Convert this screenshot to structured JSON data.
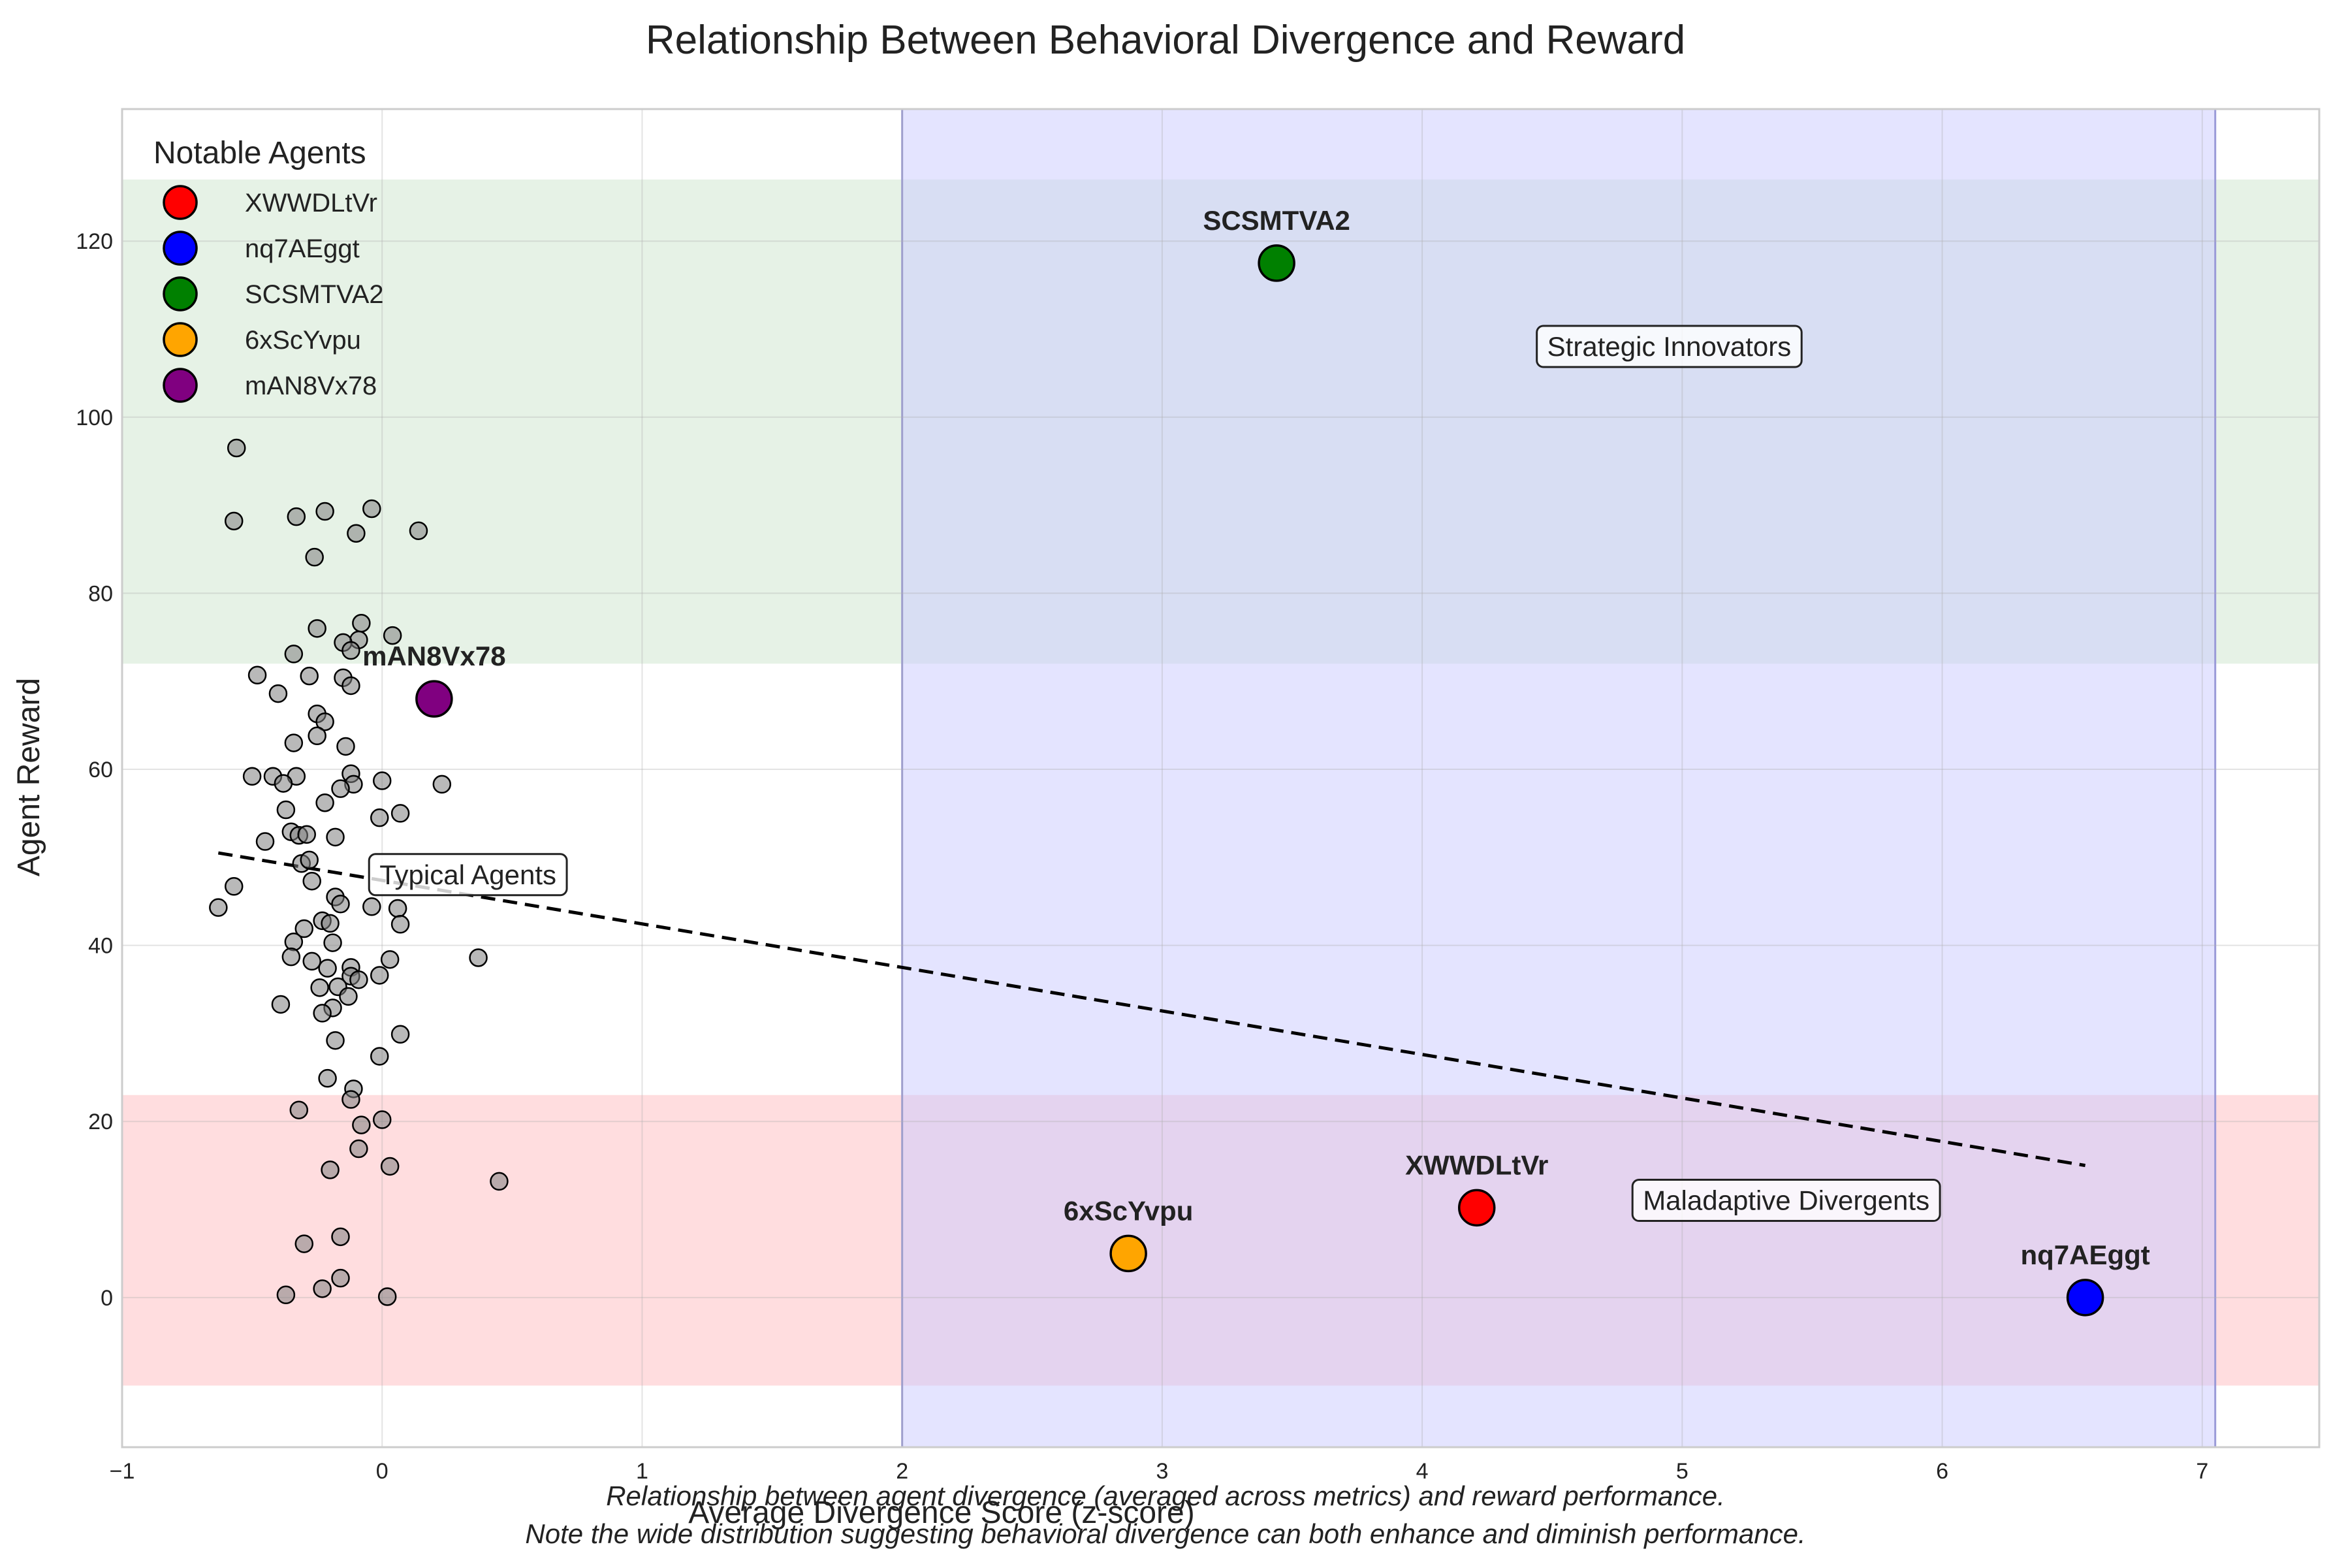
{
  "chart_data": {
    "type": "scatter",
    "title": "Relationship Between Behavioral Divergence and Reward",
    "xlabel": "Average Divergence Score (z-score)",
    "ylabel": "Agent Reward",
    "xlim": [
      -1,
      7.45
    ],
    "ylim": [
      -17,
      135
    ],
    "xticks": [
      -1,
      0,
      1,
      2,
      3,
      4,
      5,
      6,
      7
    ],
    "xtick_labels": [
      "−1",
      "0",
      "1",
      "2",
      "3",
      "4",
      "5",
      "6",
      "7"
    ],
    "yticks": [
      0,
      20,
      40,
      60,
      80,
      100,
      120
    ],
    "ytick_labels": [
      "0",
      "20",
      "40",
      "60",
      "80",
      "100",
      "120"
    ],
    "grid": true,
    "legend": {
      "title": "Notable Agents",
      "placement": "top-left"
    },
    "regions": [
      {
        "kind": "horizontal",
        "y": [
          72,
          127
        ],
        "color": "#c8e3c8"
      },
      {
        "kind": "horizontal",
        "y": [
          -10,
          23
        ],
        "color": "#ffb3b8"
      },
      {
        "kind": "vertical",
        "x": [
          2,
          7.05
        ],
        "color": "#c9c9ff"
      }
    ],
    "region_labels": [
      {
        "text": "Strategic Innovators",
        "x": 4.95,
        "y": 108
      },
      {
        "text": "Typical Agents",
        "x": 0.33,
        "y": 48
      },
      {
        "text": "Maladaptive Divergents",
        "x": 5.4,
        "y": 11
      }
    ],
    "trend_line": {
      "x": [
        -0.63,
        6.55
      ],
      "y": [
        50.5,
        15.0
      ],
      "style": "dashed",
      "color": "#000000"
    },
    "background_points": [
      [
        -0.56,
        96.5
      ],
      [
        -0.57,
        88.2
      ],
      [
        -0.33,
        88.7
      ],
      [
        -0.22,
        89.3
      ],
      [
        -0.04,
        89.6
      ],
      [
        -0.1,
        86.8
      ],
      [
        0.14,
        87.1
      ],
      [
        -0.26,
        84.1
      ],
      [
        -0.25,
        76.0
      ],
      [
        -0.08,
        76.6
      ],
      [
        0.04,
        75.2
      ],
      [
        -0.09,
        74.7
      ],
      [
        -0.15,
        74.4
      ],
      [
        -0.34,
        73.1
      ],
      [
        -0.12,
        73.5
      ],
      [
        -0.48,
        70.7
      ],
      [
        -0.28,
        70.6
      ],
      [
        -0.15,
        70.4
      ],
      [
        -0.4,
        68.6
      ],
      [
        -0.12,
        69.5
      ],
      [
        -0.25,
        66.3
      ],
      [
        -0.22,
        65.4
      ],
      [
        -0.25,
        63.8
      ],
      [
        -0.34,
        63.0
      ],
      [
        -0.14,
        62.6
      ],
      [
        -0.5,
        59.2
      ],
      [
        -0.42,
        59.2
      ],
      [
        -0.33,
        59.2
      ],
      [
        -0.12,
        59.5
      ],
      [
        -0.38,
        58.4
      ],
      [
        -0.11,
        58.3
      ],
      [
        -0.16,
        57.8
      ],
      [
        0.0,
        58.7
      ],
      [
        0.23,
        58.3
      ],
      [
        -0.22,
        56.2
      ],
      [
        -0.37,
        55.4
      ],
      [
        0.07,
        55.0
      ],
      [
        -0.01,
        54.5
      ],
      [
        -0.35,
        52.9
      ],
      [
        -0.32,
        52.5
      ],
      [
        -0.29,
        52.6
      ],
      [
        -0.18,
        52.3
      ],
      [
        -0.45,
        51.8
      ],
      [
        -0.31,
        49.3
      ],
      [
        -0.28,
        49.7
      ],
      [
        -0.27,
        47.3
      ],
      [
        -0.57,
        46.7
      ],
      [
        -0.18,
        45.5
      ],
      [
        -0.16,
        44.7
      ],
      [
        -0.63,
        44.3
      ],
      [
        -0.04,
        44.4
      ],
      [
        0.06,
        44.2
      ],
      [
        0.07,
        42.4
      ],
      [
        -0.23,
        42.8
      ],
      [
        -0.2,
        42.5
      ],
      [
        -0.3,
        41.9
      ],
      [
        -0.34,
        40.4
      ],
      [
        -0.19,
        40.3
      ],
      [
        0.37,
        38.6
      ],
      [
        -0.35,
        38.7
      ],
      [
        0.03,
        38.4
      ],
      [
        -0.27,
        38.2
      ],
      [
        -0.21,
        37.4
      ],
      [
        -0.12,
        37.5
      ],
      [
        -0.12,
        36.5
      ],
      [
        -0.09,
        36.1
      ],
      [
        -0.01,
        36.6
      ],
      [
        -0.24,
        35.2
      ],
      [
        -0.17,
        35.3
      ],
      [
        -0.13,
        34.2
      ],
      [
        -0.39,
        33.3
      ],
      [
        -0.19,
        32.9
      ],
      [
        -0.23,
        32.3
      ],
      [
        0.07,
        29.9
      ],
      [
        -0.18,
        29.2
      ],
      [
        -0.01,
        27.4
      ],
      [
        -0.21,
        24.9
      ],
      [
        -0.11,
        23.7
      ],
      [
        -0.12,
        22.5
      ],
      [
        -0.32,
        21.3
      ],
      [
        -0.08,
        19.6
      ],
      [
        0.0,
        20.2
      ],
      [
        -0.09,
        16.9
      ],
      [
        -0.2,
        14.5
      ],
      [
        0.03,
        14.9
      ],
      [
        0.45,
        13.2
      ],
      [
        -0.16,
        6.9
      ],
      [
        -0.3,
        6.1
      ],
      [
        -0.16,
        2.2
      ],
      [
        -0.23,
        1.0
      ],
      [
        -0.37,
        0.3
      ],
      [
        0.02,
        0.1
      ]
    ],
    "series": [
      {
        "name": "XWWDLtVr",
        "x": 4.21,
        "y": 10.2,
        "color": "#ff0000"
      },
      {
        "name": "nq7AEggt",
        "x": 6.55,
        "y": 0.0,
        "color": "#0000ff"
      },
      {
        "name": "SCSMTVA2",
        "x": 3.44,
        "y": 117.5,
        "color": "#008000"
      },
      {
        "name": "6xScYvpu",
        "x": 2.87,
        "y": 5.0,
        "color": "#ffa500"
      },
      {
        "name": "mAN8Vx78",
        "x": 0.2,
        "y": 68.0,
        "color": "#800080"
      }
    ],
    "caption": [
      "Relationship between agent divergence (averaged across metrics) and reward performance.",
      "Note the wide distribution suggesting behavioral divergence can both enhance and diminish performance."
    ]
  }
}
